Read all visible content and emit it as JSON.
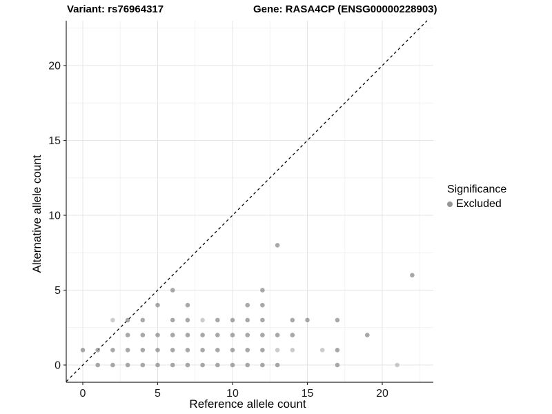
{
  "header": {
    "left_title": "Variant: rs76964317",
    "right_title": "Gene: RASA4CP (ENSG00000228903)"
  },
  "axes": {
    "x_label": "Reference allele count",
    "y_label": "Alternative allele count",
    "x_ticks": [
      0,
      5,
      10,
      15,
      20
    ],
    "y_ticks": [
      0,
      5,
      10,
      15,
      20
    ],
    "x_minor_ticks": [
      2.5,
      7.5,
      12.5,
      17.5,
      22.5
    ],
    "y_minor_ticks": [
      2.5,
      7.5,
      12.5,
      17.5,
      22.5
    ]
  },
  "legend": {
    "title": "Significance",
    "items": [
      {
        "label": "Excluded",
        "color": "#969696"
      }
    ]
  },
  "colors": {
    "point": "#8f8f8f",
    "grid_major": "#e4e4e4",
    "grid_minor": "#f2f2f2",
    "axis_line": "#2a2a2a",
    "tick_label": "#1a1a1a",
    "identity_line": "#000000",
    "panel_background": "#ffffff"
  },
  "chart_data": {
    "type": "scatter",
    "title": "Variant: rs76964317 — Gene: RASA4CP (ENSG00000228903)",
    "xlabel": "Reference allele count",
    "ylabel": "Alternative allele count",
    "xlim": [
      -1.1,
      23.4
    ],
    "ylim": [
      -1.1,
      23.1
    ],
    "grid": true,
    "legend_position": "right",
    "identity_line": {
      "show": true,
      "style": "dashed",
      "equation": "y = x"
    },
    "series": [
      {
        "name": "Excluded",
        "points": [
          [
            1,
            0
          ],
          [
            2,
            0
          ],
          [
            3,
            0
          ],
          [
            4,
            0
          ],
          [
            5,
            0
          ],
          [
            6,
            0
          ],
          [
            7,
            0
          ],
          [
            8,
            0
          ],
          [
            9,
            0
          ],
          [
            10,
            0
          ],
          [
            11,
            0
          ],
          [
            12,
            0
          ],
          [
            13,
            0
          ],
          [
            17,
            0
          ],
          [
            21,
            0
          ],
          [
            0,
            1
          ],
          [
            1,
            1
          ],
          [
            2,
            1
          ],
          [
            3,
            1
          ],
          [
            4,
            1
          ],
          [
            5,
            1
          ],
          [
            6,
            1
          ],
          [
            7,
            1
          ],
          [
            8,
            1
          ],
          [
            9,
            1
          ],
          [
            10,
            1
          ],
          [
            11,
            1
          ],
          [
            12,
            1
          ],
          [
            13,
            1
          ],
          [
            14,
            1
          ],
          [
            16,
            1
          ],
          [
            17,
            1
          ],
          [
            3,
            2
          ],
          [
            4,
            2
          ],
          [
            5,
            2
          ],
          [
            6,
            2
          ],
          [
            7,
            2
          ],
          [
            8,
            2
          ],
          [
            9,
            2
          ],
          [
            10,
            2
          ],
          [
            11,
            2
          ],
          [
            12,
            2
          ],
          [
            13,
            2
          ],
          [
            14,
            2
          ],
          [
            19,
            2
          ],
          [
            2,
            3
          ],
          [
            3,
            3
          ],
          [
            4,
            3
          ],
          [
            6,
            3
          ],
          [
            7,
            3
          ],
          [
            8,
            3
          ],
          [
            9,
            3
          ],
          [
            10,
            3
          ],
          [
            11,
            3
          ],
          [
            12,
            3
          ],
          [
            14,
            3
          ],
          [
            15,
            3
          ],
          [
            17,
            3
          ],
          [
            5,
            4
          ],
          [
            7,
            4
          ],
          [
            11,
            4
          ],
          [
            12,
            4
          ],
          [
            6,
            5
          ],
          [
            12,
            5
          ],
          [
            22,
            6
          ],
          [
            13,
            8
          ]
        ]
      }
    ],
    "light_points": [
      [
        2,
        3
      ],
      [
        8,
        3
      ],
      [
        13,
        1
      ],
      [
        14,
        1
      ],
      [
        16,
        1
      ],
      [
        21,
        0
      ]
    ]
  }
}
